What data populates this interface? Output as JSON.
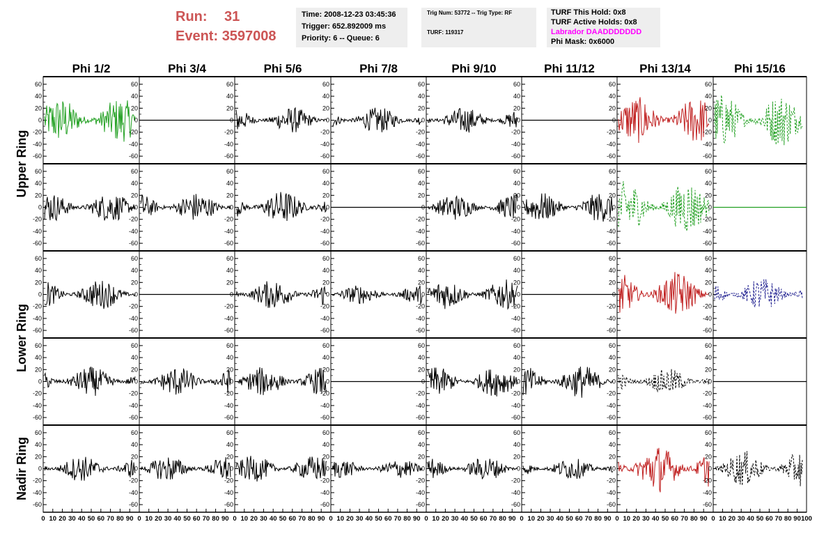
{
  "header": {
    "run_label": "Run:",
    "run_value": "31",
    "event_label": "Event:",
    "event_value": "3597008",
    "time": "Time: 2008-12-23 03:45:36",
    "trigger": "Trigger: 652.892009 ms",
    "priority": "Priority: 6 -- Queue: 6",
    "trig_num": "Trig Num: 53772 -- Trig Type: RF",
    "turf": "TURF: 119317",
    "turf_hold": "TURF This Hold: 0x8",
    "turf_active": "TURF Active Holds: 0x8",
    "labrador": "Labrador DAADDDDDDD",
    "phi_mask": "Phi Mask: 0x6000"
  },
  "columns": [
    "Phi 1/2",
    "Phi 3/4",
    "Phi 5/6",
    "Phi 7/8",
    "Phi 9/10",
    "Phi 11/12",
    "Phi 13/14",
    "Phi 15/16"
  ],
  "rings": [
    "Upper Ring",
    "Lower Ring",
    "Nadir Ring"
  ],
  "y_ticks": [
    "60",
    "40",
    "20",
    "0",
    "-20",
    "-40",
    "-60"
  ],
  "x_ticks": [
    "0",
    "10",
    "20",
    "30",
    "40",
    "50",
    "60",
    "70",
    "80",
    "90",
    "100"
  ],
  "colors": {
    "green": "#22a022",
    "red": "#c02020",
    "navy": "#202090",
    "black": "#000000",
    "title_red": "#cc5555",
    "magenta": "#ff00ff",
    "box_bg": "#eeeeee"
  },
  "chart_data": {
    "type": "line",
    "ylim": [
      -68,
      68
    ],
    "xlim": [
      0,
      100
    ],
    "panels": [
      [
        "green:38",
        "flat:black",
        "black:22",
        "black:22",
        "black:22",
        "flat:black",
        "red:40",
        "green-dash:45"
      ],
      [
        "black:25",
        "black:25",
        "black:28",
        "flat:black",
        "black:22",
        "black:25",
        "green-dash:45",
        "flat:green"
      ],
      [
        "black:25",
        "flat:black",
        "black:25",
        "black:16",
        "black:25",
        "flat:black",
        "red:38",
        "navy-dash:28"
      ],
      [
        "black:25",
        "black:25",
        "black:25",
        "flat:black",
        "black:25",
        "black:28",
        "black-dash:22",
        "flat:black"
      ],
      [
        "black:22",
        "black:22",
        "black:22",
        "black:16",
        "black:20",
        "black:18",
        "red:40",
        "black-dash:30"
      ]
    ]
  }
}
